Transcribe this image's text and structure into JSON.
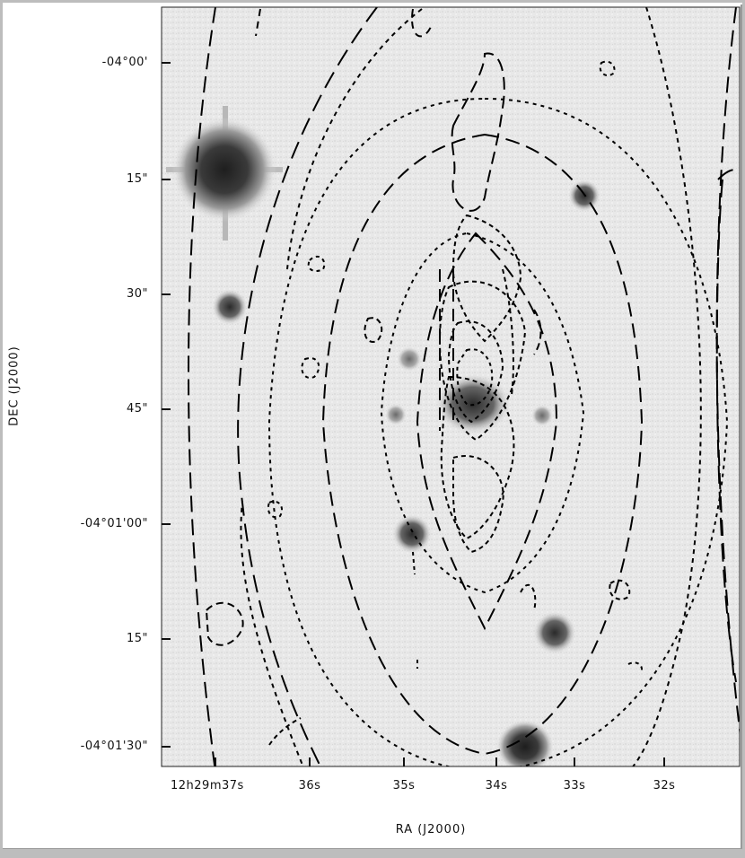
{
  "figure": {
    "description_type": "astronomical-overlay",
    "xlabel": "RA (J2000)",
    "ylabel": "DEC (J2000)",
    "ytick_labels": [
      "-04°00'",
      "15\"",
      "30\"",
      "45\"",
      "-04°01'00\"",
      "15\"",
      "-04°01'30\""
    ],
    "xtick_labels": [
      "12h29m37s",
      "36s",
      "35s",
      "34s",
      "33s",
      "32s"
    ],
    "colors": {
      "background": "#ececec",
      "contour": "#000000",
      "frame": "#bdbdbd"
    }
  }
}
